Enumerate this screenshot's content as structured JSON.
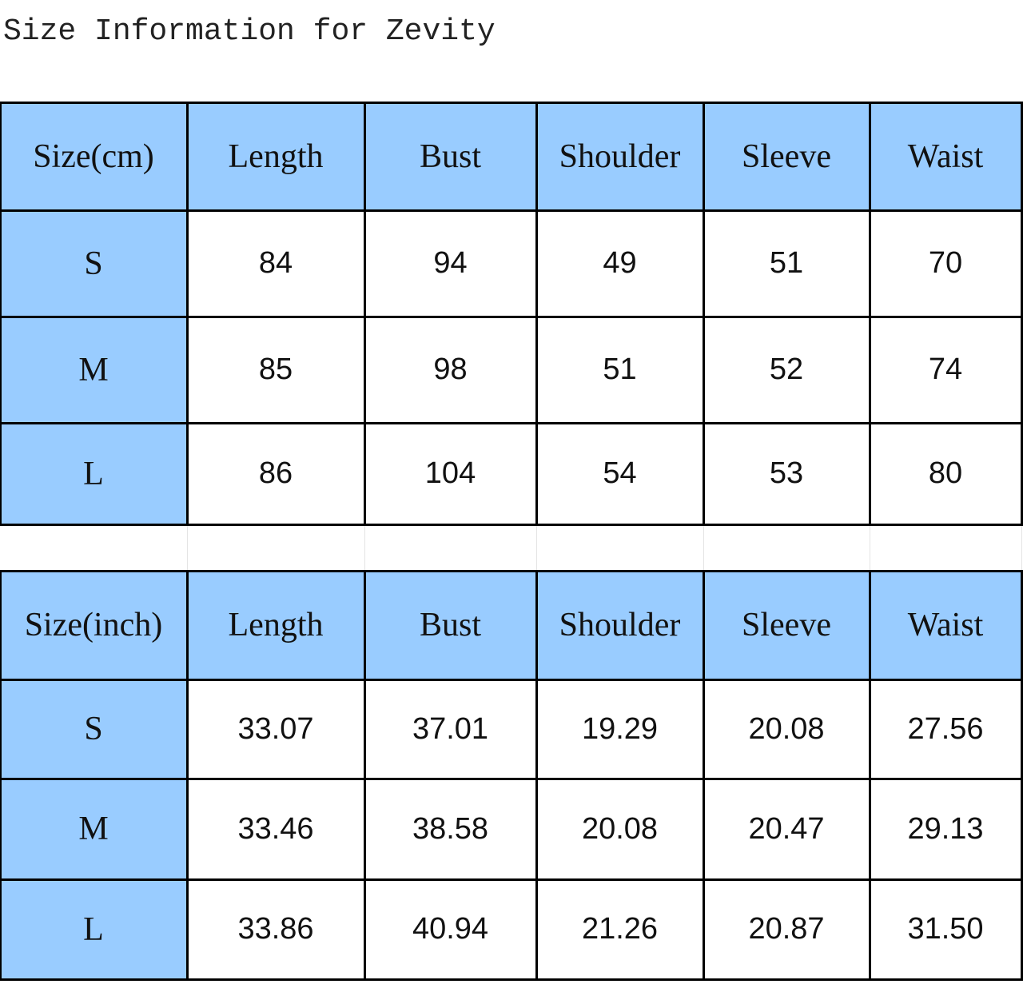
{
  "title": "Size Information for Zevity",
  "tables": [
    {
      "header": [
        "Size(cm)",
        "Length",
        "Bust",
        "Shoulder",
        "Sleeve",
        "Waist"
      ],
      "rows": [
        [
          "S",
          "84",
          "94",
          "49",
          "51",
          "70"
        ],
        [
          "M",
          "85",
          "98",
          "51",
          "52",
          "74"
        ],
        [
          "L",
          "86",
          "104",
          "54",
          "53",
          "80"
        ]
      ]
    },
    {
      "header": [
        "Size(inch)",
        "Length",
        "Bust",
        "Shoulder",
        "Sleeve",
        "Waist"
      ],
      "rows": [
        [
          "S",
          "33.07",
          "37.01",
          "19.29",
          "20.08",
          "27.56"
        ],
        [
          "M",
          "33.46",
          "38.58",
          "20.08",
          "20.47",
          "29.13"
        ],
        [
          "L",
          "33.86",
          "40.94",
          "21.26",
          "20.87",
          "31.50"
        ]
      ]
    }
  ]
}
